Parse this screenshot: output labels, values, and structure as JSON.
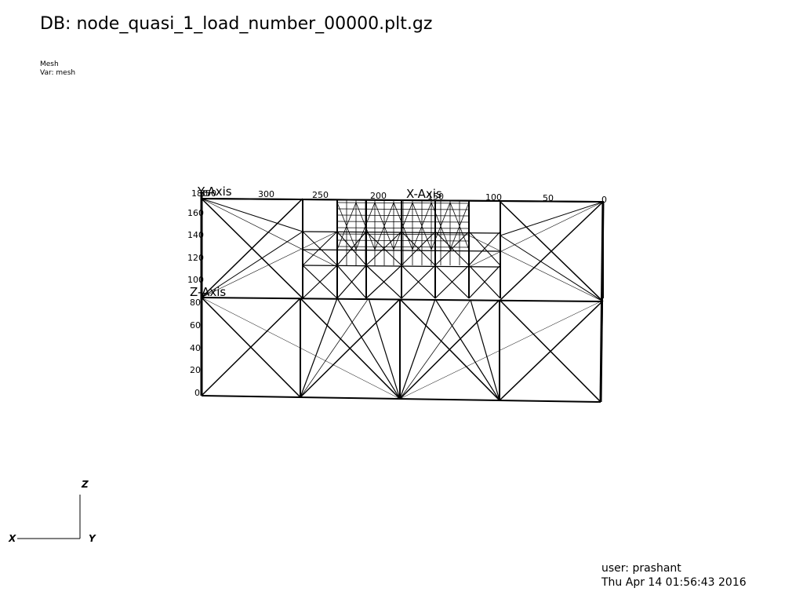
{
  "header": {
    "db_title": "DB: node_quasi_1_load_number_00000.plt.gz",
    "plot_name": "Mesh",
    "var_name": "Var: mesh"
  },
  "footer": {
    "user": "user: prashant",
    "date": "Thu Apr 14 01:56:43 2016"
  },
  "axes": {
    "x_title": "X-Axis",
    "y_title": "Y-Axis",
    "z_title": "Z-Axis",
    "x_ticks": [
      "350",
      "300",
      "250",
      "200",
      "150",
      "100",
      "50",
      "0"
    ],
    "z_ticks": [
      "180",
      "160",
      "140",
      "120",
      "100",
      "80",
      "60",
      "40",
      "20",
      "0"
    ]
  },
  "triad": {
    "x": "X",
    "y": "Y",
    "z": "Z"
  },
  "colors": {
    "background": "#ffffff",
    "mesh": "#000000"
  }
}
